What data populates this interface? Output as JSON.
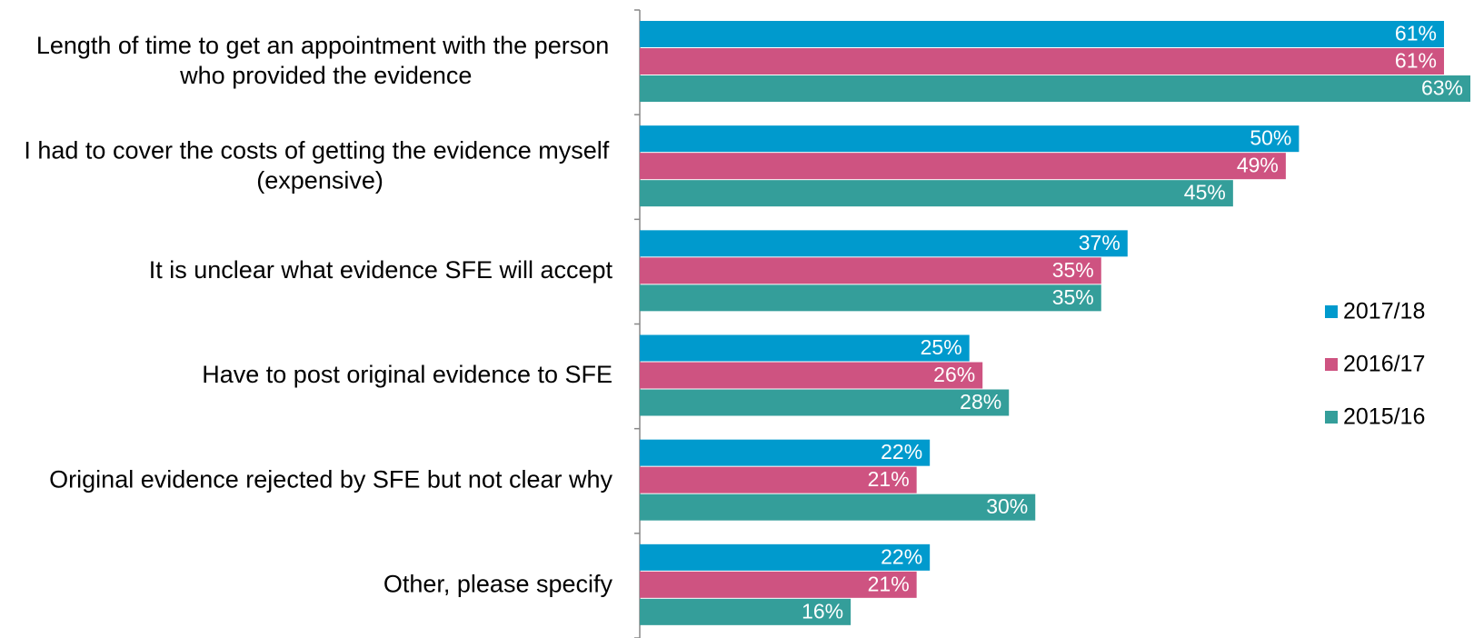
{
  "chart_data": {
    "type": "bar",
    "orientation": "horizontal",
    "categories": [
      "Length of time to get an appointment with the person who provided the evidence",
      "I had to cover the costs of getting the evidence myself (expensive)",
      "It is unclear what evidence SFE will accept",
      "Have to post original evidence to SFE",
      "Original evidence rejected by SFE but not clear why",
      "Other, please specify"
    ],
    "series": [
      {
        "name": "2017/18",
        "color": "#009acd",
        "values": [
          61,
          50,
          37,
          25,
          22,
          22
        ],
        "value_labels": [
          "61%",
          "50%",
          "37%",
          "25%",
          "22%",
          "22%"
        ]
      },
      {
        "name": "2016/17",
        "color": "#ce5381",
        "values": [
          61,
          49,
          35,
          26,
          21,
          21
        ],
        "value_labels": [
          "61%",
          "49%",
          "35%",
          "26%",
          "21%",
          "21%"
        ]
      },
      {
        "name": "2015/16",
        "color": "#349e9a",
        "values": [
          63,
          45,
          35,
          28,
          30,
          16
        ],
        "value_labels": [
          "63%",
          "45%",
          "35%",
          "28%",
          "30%",
          "16%"
        ]
      }
    ],
    "legend": "right"
  }
}
